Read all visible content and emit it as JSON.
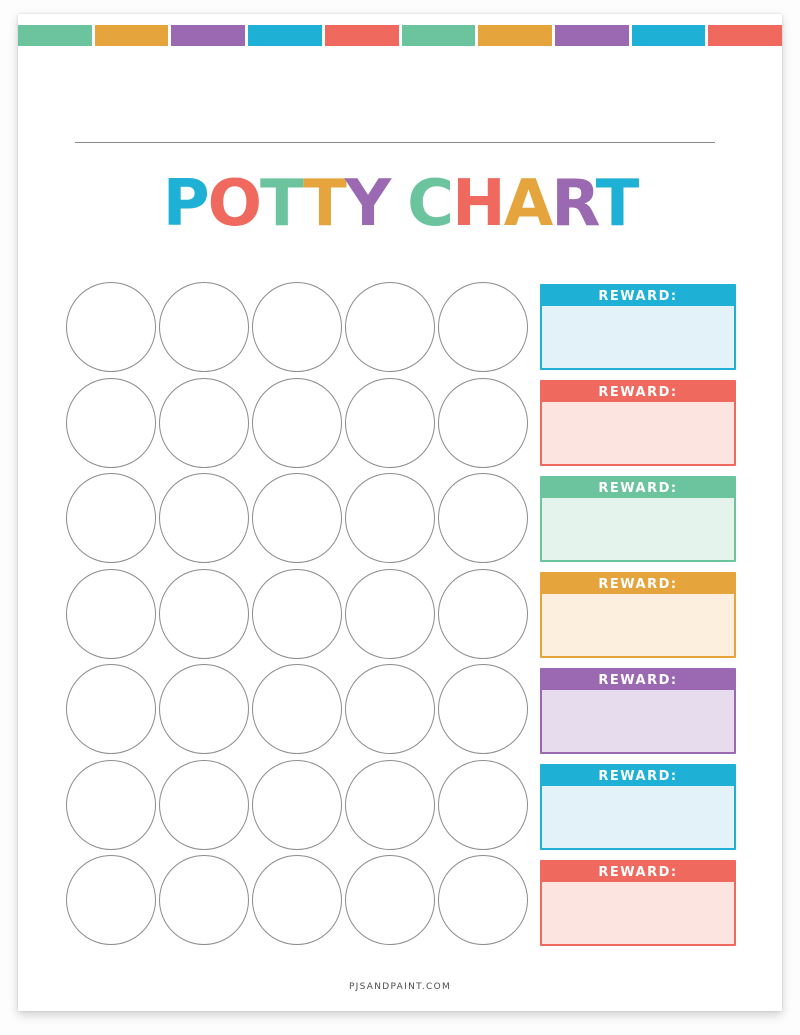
{
  "palette": {
    "green": "#6cc49e",
    "gold": "#e5a43c",
    "purple": "#9a69b2",
    "blue": "#1fb0d6",
    "coral": "#f0695e"
  },
  "top_stripe": {
    "blocks": [
      "green",
      "gold",
      "purple",
      "blue",
      "coral",
      "green",
      "gold",
      "purple",
      "blue",
      "coral"
    ]
  },
  "title": {
    "text": "POTTY CHART",
    "letters": [
      {
        "char": "P",
        "color": "blue"
      },
      {
        "char": "O",
        "color": "coral"
      },
      {
        "char": "T",
        "color": "green"
      },
      {
        "char": "T",
        "color": "gold"
      },
      {
        "char": "Y",
        "color": "purple"
      },
      {
        "char": " ",
        "color": ""
      },
      {
        "char": "C",
        "color": "green"
      },
      {
        "char": "H",
        "color": "coral"
      },
      {
        "char": "A",
        "color": "gold"
      },
      {
        "char": "R",
        "color": "purple"
      },
      {
        "char": "T",
        "color": "blue"
      }
    ]
  },
  "sticker_grid": {
    "rows": 7,
    "columns": 5
  },
  "rewards": {
    "label": "REWARD:",
    "boxes": [
      {
        "color": "blue",
        "tint": "#e3f2f9"
      },
      {
        "color": "coral",
        "tint": "#fce5e0"
      },
      {
        "color": "green",
        "tint": "#e4f4ec"
      },
      {
        "color": "gold",
        "tint": "#fcefdd"
      },
      {
        "color": "purple",
        "tint": "#e7dcee"
      },
      {
        "color": "blue",
        "tint": "#e3f2f9"
      },
      {
        "color": "coral",
        "tint": "#fce5e0"
      }
    ]
  },
  "footer": {
    "credit": "PJSANDPAINT.COM"
  }
}
